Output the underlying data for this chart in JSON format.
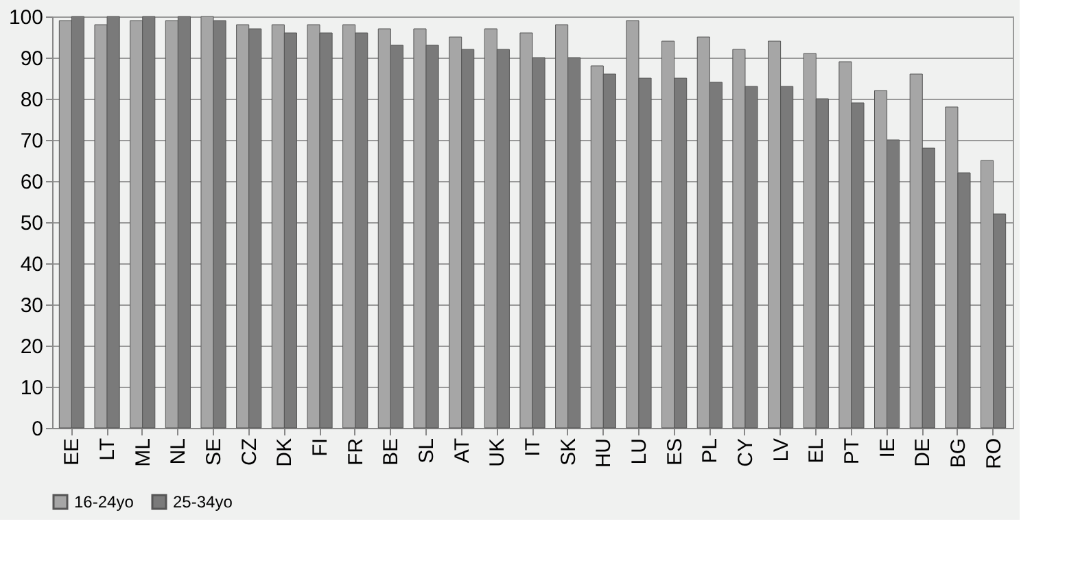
{
  "chart_data": {
    "type": "bar",
    "categories": [
      "EE",
      "LT",
      "ML",
      "NL",
      "SE",
      "CZ",
      "DK",
      "FI",
      "FR",
      "BE",
      "SL",
      "AT",
      "UK",
      "IT",
      "SK",
      "HU",
      "LU",
      "ES",
      "PL",
      "CY",
      "LV",
      "EL",
      "PT",
      "IE",
      "DE",
      "BG",
      "RO"
    ],
    "series": [
      {
        "name": "16-24yo",
        "color": "#a6a6a6",
        "values": [
          99,
          98,
          99,
          99,
          100,
          98,
          98,
          98,
          98,
          97,
          97,
          95,
          97,
          96,
          98,
          88,
          99,
          94,
          95,
          92,
          94,
          91,
          89,
          82,
          86,
          78,
          65
        ]
      },
      {
        "name": "25-34yo",
        "color": "#7a7a7a",
        "values": [
          100,
          100,
          100,
          100,
          99,
          97,
          96,
          96,
          96,
          93,
          93,
          92,
          92,
          90,
          90,
          86,
          85,
          85,
          84,
          83,
          83,
          80,
          79,
          70,
          68,
          62,
          52
        ]
      }
    ],
    "ylim": [
      0,
      100
    ],
    "yticks": [
      0,
      10,
      20,
      30,
      40,
      50,
      60,
      70,
      80,
      90,
      100
    ],
    "grid": "y",
    "legend": "bottom"
  }
}
